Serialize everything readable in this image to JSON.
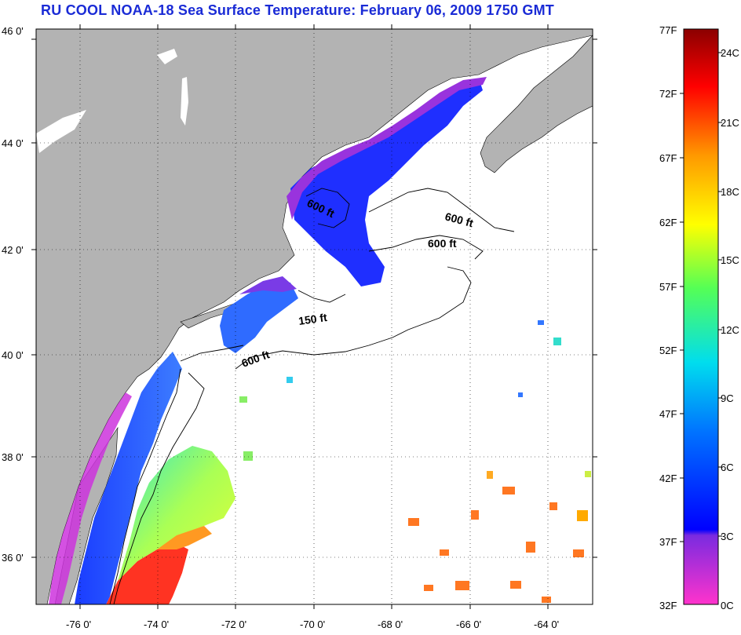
{
  "title": "RU COOL  NOAA-18  Sea Surface Temperature:  February 06, 2009 1750 GMT",
  "colors": {
    "land": "#b3b3b3",
    "water": "#ffffff",
    "title": "#1a2bd6"
  },
  "latitude_labels": [
    "46 0'",
    "44 0'",
    "42 0'",
    "40 0'",
    "38 0'",
    "36 0'"
  ],
  "longitude_labels": [
    "-76 0'",
    "-74 0'",
    "-72 0'",
    "-70 0'",
    "-68 0'",
    "-66 0'",
    "-64 0'"
  ],
  "contour_labels": [
    "600 ft",
    "600 ft",
    "600 ft",
    "150 ft",
    "600 ft"
  ],
  "colorbar": {
    "fahrenheit_labels": [
      "77F",
      "72F",
      "67F",
      "62F",
      "57F",
      "52F",
      "47F",
      "42F",
      "37F",
      "32F"
    ],
    "celsius_labels": [
      "24C",
      "21C",
      "18C",
      "15C",
      "12C",
      "9C",
      "6C",
      "3C",
      "0C"
    ]
  }
}
